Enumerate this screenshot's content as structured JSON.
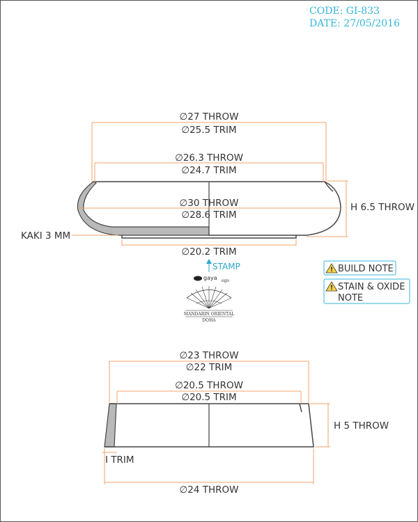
{
  "header": {
    "code": "CODE: GI-833",
    "date": "DATE: 27/05/2016"
  },
  "top_part": {
    "outer_rim_throw": "∅27 THROW",
    "outer_rim_trim": "∅25.5 TRIM",
    "inner_rim_throw": "∅26.3 THROW",
    "inner_rim_trim": "∅24.7 TRIM",
    "body_throw": "∅30 THROW",
    "body_trim": "∅28.6 TRIM",
    "height": "H 6.5 THROW",
    "wall": "KAKI 3 MM",
    "base_trim": "∅20.2 TRIM"
  },
  "stamp": {
    "label": "STAMP",
    "brand": "gaya",
    "brand_sub": "ego",
    "hotel_name": "MANDARIN ORIENTAL",
    "hotel_city": "DOHA"
  },
  "notes": {
    "build_note": "BUILD NOTE",
    "stain_line1": "STAIN & OXIDE",
    "stain_line2": "NOTE"
  },
  "bottom_part": {
    "top_throw": "∅23 THROW",
    "top_trim": "∅22 TRIM",
    "inner_throw": "∅20.5 THROW",
    "inner_trim": "∅20.5 TRIM",
    "height": "H 5 THROW",
    "wall_trim": "I TRIM",
    "base_throw": "∅24 THROW"
  }
}
